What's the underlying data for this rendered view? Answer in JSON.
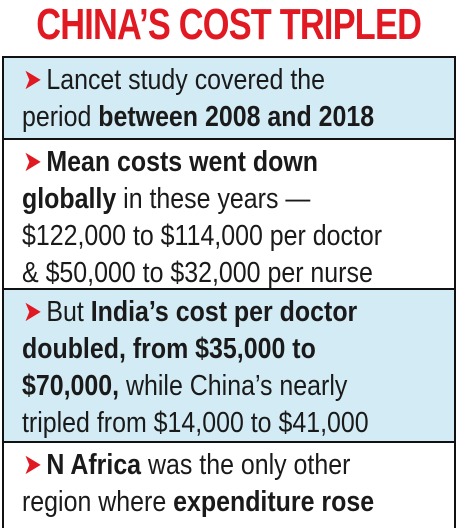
{
  "title": "CHINA’S COST TRIPLED",
  "bullet_glyph": "➤",
  "colors": {
    "title": "#e01922",
    "bullet": "#e01922",
    "panel_blue": "#d2ebf5",
    "panel_white": "#ffffff",
    "border": "#111111"
  },
  "points": [
    {
      "lines": [
        [
          {
            "t": "Lancet study covered the",
            "b": false
          }
        ],
        [
          {
            "t": "period ",
            "b": false
          },
          {
            "t": "between 2008 and 2018",
            "b": true
          }
        ]
      ]
    },
    {
      "lines": [
        [
          {
            "t": "Mean costs went down",
            "b": true
          }
        ],
        [
          {
            "t": "globally",
            "b": true
          },
          {
            "t": " in these years —",
            "b": false
          }
        ],
        [
          {
            "t": "$122,000 to $114,000 per doctor",
            "b": false
          }
        ],
        [
          {
            "t": "& $50,000 to $32,000 per nurse",
            "b": false
          }
        ]
      ]
    },
    {
      "lines": [
        [
          {
            "t": "But ",
            "b": false
          },
          {
            "t": "India’s cost per doctor",
            "b": true
          }
        ],
        [
          {
            "t": "doubled, from $35,000 to",
            "b": true
          }
        ],
        [
          {
            "t": "$70,000,",
            "b": true
          },
          {
            "t": " while China’s nearly",
            "b": false
          }
        ],
        [
          {
            "t": "tripled from $14,000 to $41,000",
            "b": false
          }
        ]
      ]
    },
    {
      "lines": [
        [
          {
            "t": "N Africa",
            "b": true
          },
          {
            "t": " was the only other",
            "b": false
          }
        ],
        [
          {
            "t": "region where ",
            "b": false
          },
          {
            "t": "expenditure rose",
            "b": true
          }
        ]
      ]
    }
  ]
}
